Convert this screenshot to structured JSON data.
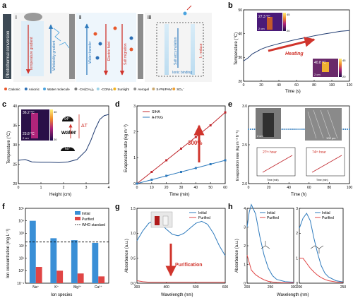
{
  "panel_letters": {
    "a": "a",
    "b": "b",
    "c": "c",
    "d": "d",
    "e": "e",
    "f": "f",
    "g": "g",
    "h": "h"
  },
  "panel_a": {
    "side_label": "Photothermal conversion",
    "sub_labels": [
      "i",
      "ii",
      "iii"
    ],
    "arrow_labels": {
      "temperature_gradient": "Temperature gradient",
      "wettability_gradient": "Wettability gradient",
      "water_transfer": "Water transfer",
      "electric_field": "Electric field",
      "salt_migration": "Salt migration",
      "salt_accumulation": "Salt accumulation",
      "ionic_binding": "Ionic binding",
      "i_reduce": "I↓ reduce"
    },
    "legend": [
      {
        "label": "Cationic",
        "color": "#e8572a"
      },
      {
        "label": "Anionic",
        "color": "#2c6fb5"
      },
      {
        "label": "Water molecule",
        "color": "#4aa3df"
      },
      {
        "label": "-CH(CH₃)₂",
        "color": "#777777"
      },
      {
        "label": "-CONH₂",
        "color": "#9bd3e8"
      },
      {
        "label": "Sunlight",
        "color": "#f2b21a"
      },
      {
        "label": "Aerogel",
        "color": "#8f8f8f"
      },
      {
        "label": "S-PNIPAM",
        "color": "#c9a66b"
      },
      {
        "label": "SO₃⁻",
        "color": "#f0a030"
      }
    ]
  },
  "panel_b": {
    "ylabel": "Temperature (°C)",
    "xlabel": "Time (s)",
    "inset1": {
      "value": "27.3 °C",
      "scale": "2 cm",
      "hi": "45",
      "lo": "20"
    },
    "inset2": {
      "value": "40.8 °C",
      "scale": "2 cm",
      "hi": "45",
      "lo": "20"
    },
    "annotation": "Heating",
    "chart_data": {
      "type": "line",
      "xlim": [
        0,
        120
      ],
      "ylim": [
        20,
        50
      ],
      "x": [
        0,
        5,
        10,
        15,
        20,
        25,
        30,
        40,
        50,
        60,
        70,
        80,
        90,
        100,
        110,
        120
      ],
      "y": [
        28.5,
        29.8,
        31.5,
        32.5,
        33.5,
        34.2,
        34.8,
        35.8,
        36.7,
        37.6,
        38.3,
        39.1,
        39.8,
        40.4,
        41.0,
        41.3
      ],
      "xticks": [
        "0",
        "20",
        "40",
        "60",
        "80",
        "100",
        "120"
      ],
      "yticks": [
        "20",
        "30",
        "40",
        "50"
      ]
    }
  },
  "panel_c": {
    "ylabel": "Temperature (°C)",
    "xlabel": "Height (cm)",
    "inset": {
      "top": "36.2 °C",
      "bottom": "23.8 °C",
      "scale": "2 cm",
      "hi": "40",
      "lo": "20"
    },
    "angle_top": "94°",
    "angle_bottom": "60°",
    "water": "water",
    "delta": "ΔT",
    "chart_data": {
      "type": "line",
      "xlim": [
        0,
        4
      ],
      "ylim": [
        20,
        40
      ],
      "x": [
        0,
        0.3,
        0.6,
        1.0,
        1.4,
        1.8,
        2.2,
        2.6,
        3.0,
        3.2,
        3.4,
        3.6,
        3.8,
        4.0
      ],
      "y": [
        26.0,
        26.2,
        25.6,
        25.5,
        25.5,
        25.4,
        25.6,
        26.2,
        28.5,
        31.0,
        34.0,
        36.5,
        37.5,
        37.8
      ],
      "xticks": [
        "0",
        "1",
        "2",
        "3",
        "4"
      ],
      "yticks": [
        "20",
        "25",
        "30",
        "35",
        "40"
      ]
    }
  },
  "panel_d": {
    "ylabel": "Evaporation rate (kg m⁻²)",
    "xlabel": "Time (min)",
    "annotation": "300%",
    "chart_data": {
      "type": "line",
      "xlim": [
        0,
        60
      ],
      "ylim": [
        0,
        3
      ],
      "x": [
        0,
        10,
        20,
        30,
        40,
        50,
        60
      ],
      "series": [
        {
          "name": "SIHA",
          "color": "#c0272d",
          "values": [
            0,
            0.45,
            0.9,
            1.35,
            1.8,
            2.25,
            2.75
          ]
        },
        {
          "name": "A-HVG",
          "color": "#2f7bbd",
          "values": [
            0,
            0.15,
            0.3,
            0.45,
            0.6,
            0.75,
            0.9
          ]
        }
      ],
      "xticks": [
        "0",
        "10",
        "20",
        "30",
        "40",
        "50",
        "60"
      ],
      "yticks": [
        "0",
        "1",
        "2",
        "3"
      ]
    }
  },
  "panel_e": {
    "ylabel": "Evaporation rate (kg m⁻² h⁻¹)",
    "xlabel": "Time (h)",
    "photo_scale": "2 cm",
    "sem_scale": "100 μm",
    "inset1": {
      "title": "27ᵗʰ hour",
      "ylabel": "Evaporation rate",
      "xlabel": "Time (min)"
    },
    "inset2": {
      "title": "74ᵗʰ hour",
      "ylabel": "Evaporation rate",
      "xlabel": "Time (min)"
    },
    "chart_data": {
      "type": "scatter",
      "xlim": [
        0,
        100
      ],
      "ylim": [
        2.0,
        3.0
      ],
      "mean": 2.7,
      "xticks": [
        "0",
        "20",
        "40",
        "60",
        "80",
        "100"
      ],
      "yticks": [
        "2.0",
        "2.5",
        "3.0"
      ]
    }
  },
  "panel_f": {
    "ylabel": "Ion concentration (mg L⁻¹)",
    "xlabel": "Ion species",
    "legend": [
      "Initial",
      "Purified",
      "WHO standard"
    ],
    "chart_data": {
      "type": "bar",
      "yscale": "log",
      "ylim": [
        0.1,
        100000
      ],
      "categories": [
        "Na⁺",
        "K⁺",
        "Mg²⁺",
        "Ca²⁺"
      ],
      "series": [
        {
          "name": "Initial",
          "color": "#3a8fd6",
          "values": [
            10000,
            400,
            280,
            170
          ]
        },
        {
          "name": "Purified",
          "color": "#e04545",
          "values": [
            2.0,
            1.0,
            0.6,
            0.35
          ]
        }
      ],
      "who_standard": 200,
      "yticks": [
        "10⁻¹",
        "10⁰",
        "10¹",
        "10²",
        "10³",
        "10⁴",
        "10⁵"
      ]
    }
  },
  "panel_g": {
    "ylabel": "Absorbance (a.u.)",
    "xlabel": "Wavelength (nm)",
    "annotation": "Purification",
    "legend": [
      "Initial",
      "Purified"
    ],
    "chart_data": {
      "type": "line",
      "xlim": [
        300,
        600
      ],
      "ylim": [
        0,
        1.5
      ],
      "x": [
        300,
        320,
        340,
        360,
        380,
        400,
        420,
        440,
        460,
        480,
        500,
        520,
        540,
        560,
        580,
        600
      ],
      "series": [
        {
          "name": "Initial",
          "color": "#2f7bbd",
          "values": [
            0.85,
            1.05,
            1.2,
            1.26,
            1.2,
            1.08,
            0.98,
            0.95,
            1.0,
            1.1,
            1.2,
            1.24,
            1.18,
            1.0,
            0.75,
            0.55
          ]
        },
        {
          "name": "Purified",
          "color": "#e04545",
          "values": [
            0.05,
            0.03,
            0.02,
            0.02,
            0.02,
            0.02,
            0.02,
            0.02,
            0.02,
            0.02,
            0.02,
            0.02,
            0.02,
            0.02,
            0.02,
            0.02
          ]
        }
      ],
      "xticks": [
        "300",
        "400",
        "500",
        "600"
      ],
      "yticks": [
        "0.0",
        "0.5",
        "1.0",
        "1.5"
      ]
    }
  },
  "panel_h": {
    "ylabel": "Absorbance (a.u.)",
    "xlabel": "Wavelength (nm)",
    "legend": [
      "Initial",
      "Purified"
    ],
    "chart_data": [
      {
        "type": "line",
        "xlim": [
          190,
          300
        ],
        "ylim": [
          0,
          4
        ],
        "x": [
          190,
          195,
          200,
          210,
          220,
          230,
          240,
          250,
          260,
          280,
          300
        ],
        "series": [
          {
            "name": "Initial",
            "color": "#2f7bbd",
            "values": [
              3.0,
              3.8,
              4.2,
              3.7,
              2.5,
              1.5,
              0.8,
              0.4,
              0.2,
              0.08,
              0.05
            ]
          },
          {
            "name": "Purified",
            "color": "#e04545",
            "values": [
              1.5,
              1.1,
              0.7,
              0.45,
              0.3,
              0.18,
              0.1,
              0.06,
              0.04,
              0.02,
              0.02
            ]
          }
        ],
        "xticks": [
          "200",
          "250",
          "300"
        ],
        "yticks": [
          "0",
          "1",
          "2",
          "3",
          "4"
        ]
      },
      {
        "type": "line",
        "xlim": [
          190,
          250
        ],
        "ylim": [
          0,
          3
        ],
        "x": [
          190,
          195,
          200,
          205,
          210,
          215,
          220,
          225,
          230,
          240,
          250
        ],
        "series": [
          {
            "name": "Initial",
            "color": "#2f7bbd",
            "values": [
              2.2,
              2.6,
              2.8,
              2.5,
              1.8,
              1.2,
              0.7,
              0.4,
              0.25,
              0.1,
              0.05
            ]
          },
          {
            "name": "Purified",
            "color": "#e04545",
            "values": [
              1.0,
              1.0,
              0.8,
              0.6,
              0.45,
              0.32,
              0.22,
              0.15,
              0.1,
              0.05,
              0.03
            ]
          }
        ],
        "xticks": [
          "200",
          "250"
        ],
        "yticks": [
          "0",
          "1",
          "2",
          "3"
        ]
      }
    ]
  }
}
